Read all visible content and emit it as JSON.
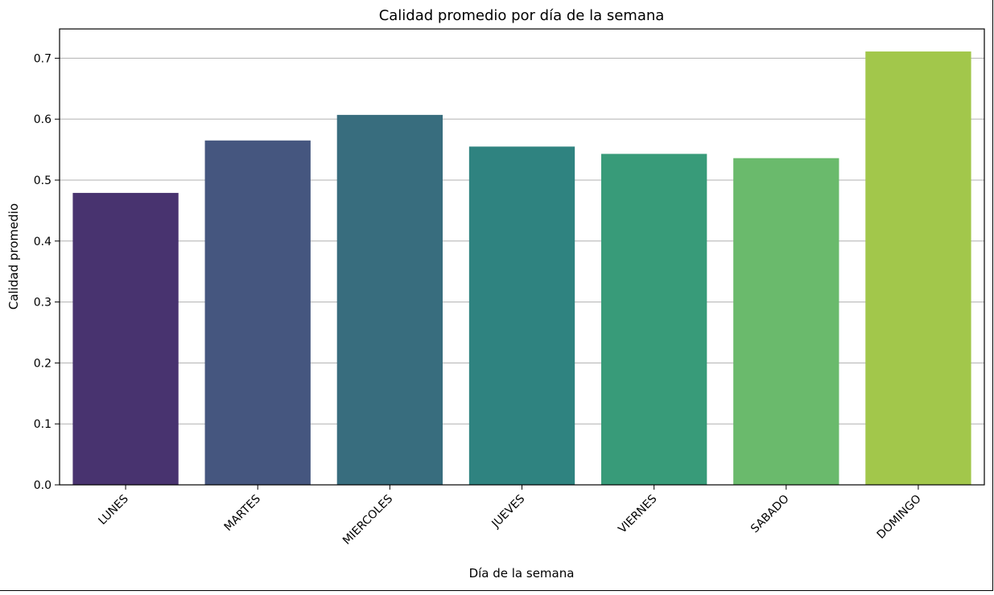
{
  "chart_data": {
    "type": "bar",
    "title": "Calidad promedio por día de la semana",
    "xlabel": "Día de la semana",
    "ylabel": "Calidad promedio",
    "categories": [
      "LUNES",
      "MARTES",
      "MIERCOLES",
      "JUEVES",
      "VIERNES",
      "SABADO",
      "DOMINGO"
    ],
    "values": [
      0.479,
      0.565,
      0.607,
      0.555,
      0.543,
      0.536,
      0.711
    ],
    "colors": [
      "#48336f",
      "#45567f",
      "#386d7e",
      "#2f8380",
      "#389b79",
      "#6aba6c",
      "#a2c74b"
    ],
    "ylim": [
      0,
      0.748
    ],
    "yticks": [
      "0.0",
      "0.1",
      "0.2",
      "0.3",
      "0.4",
      "0.5",
      "0.6",
      "0.7"
    ],
    "grid": "horizontal",
    "legend": "none"
  }
}
